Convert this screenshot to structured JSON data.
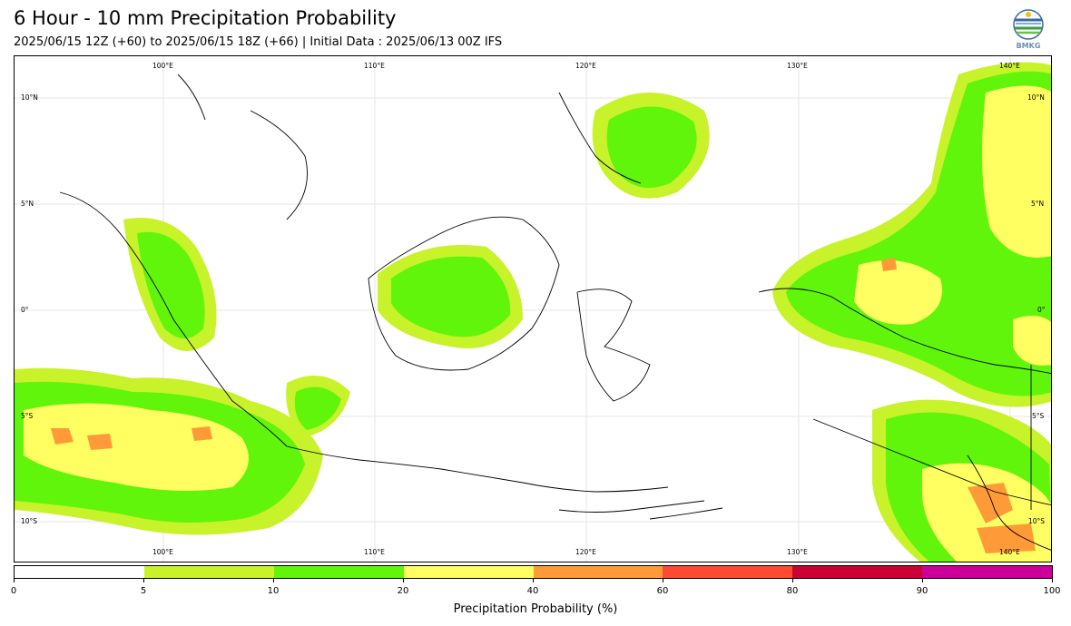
{
  "header": {
    "title": "6 Hour - 10 mm Precipitation Probability",
    "subtitle": "2025/06/15 12Z (+60) to 2025/06/15 18Z (+66) | Initial Data : 2025/06/13 00Z IFS"
  },
  "logo": {
    "icon": "bmkg-logo-icon",
    "text": "BMKG"
  },
  "map": {
    "lon_labels_top": [
      "100°E",
      "110°E",
      "120°E",
      "130°E",
      "140°E"
    ],
    "lon_labels_bottom": [
      "100°E",
      "110°E",
      "120°E",
      "130°E",
      "140°E"
    ],
    "lat_labels_left": [
      "10°N",
      "5°N",
      "0°",
      "5°S",
      "10°S"
    ],
    "lat_labels_right": [
      "10°N",
      "5°N",
      "0°",
      "5°S",
      "10°S"
    ]
  },
  "legend": {
    "title": "Precipitation Probability (%)",
    "ticks": [
      "0",
      "5",
      "10",
      "20",
      "40",
      "60",
      "80",
      "90",
      "100"
    ],
    "colors": [
      "#ffffff",
      "#c8f22a",
      "#60f50a",
      "#ffff62",
      "#ff9a38",
      "#ff4a32",
      "#cc0034",
      "#cc0099"
    ]
  }
}
